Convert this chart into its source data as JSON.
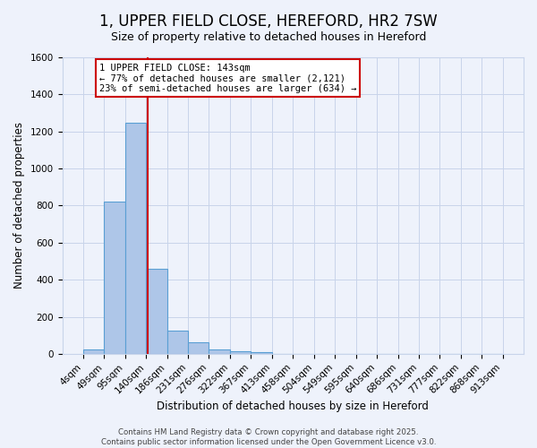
{
  "title": "1, UPPER FIELD CLOSE, HEREFORD, HR2 7SW",
  "subtitle": "Size of property relative to detached houses in Hereford",
  "xlabel": "Distribution of detached houses by size in Hereford",
  "ylabel": "Number of detached properties",
  "bar_values": [
    25,
    820,
    1245,
    460,
    125,
    60,
    25,
    15,
    10,
    0,
    0,
    0,
    0,
    0,
    0,
    0,
    0,
    0,
    0,
    0
  ],
  "bin_edges": [
    4,
    49,
    95,
    140,
    186,
    231,
    276,
    322,
    367,
    413,
    458,
    504,
    549,
    595,
    640,
    686,
    731,
    777,
    822,
    868,
    913
  ],
  "bin_labels": [
    "4sqm",
    "49sqm",
    "95sqm",
    "140sqm",
    "186sqm",
    "231sqm",
    "276sqm",
    "322sqm",
    "367sqm",
    "413sqm",
    "458sqm",
    "504sqm",
    "549sqm",
    "595sqm",
    "640sqm",
    "686sqm",
    "731sqm",
    "777sqm",
    "822sqm",
    "868sqm",
    "913sqm"
  ],
  "bar_color": "#aec6e8",
  "bar_edge_color": "#5a9fd4",
  "vline_x": 143,
  "vline_color": "#cc0000",
  "annotation_line1": "1 UPPER FIELD CLOSE: 143sqm",
  "annotation_line2": "← 77% of detached houses are smaller (2,121)",
  "annotation_line3": "23% of semi-detached houses are larger (634) →",
  "ylim": [
    0,
    1600
  ],
  "yticks": [
    0,
    200,
    400,
    600,
    800,
    1000,
    1200,
    1400,
    1600
  ],
  "background_color": "#eef2fb",
  "grid_color": "#c8d4ea",
  "footer_line1": "Contains HM Land Registry data © Crown copyright and database right 2025.",
  "footer_line2": "Contains public sector information licensed under the Open Government Licence v3.0.",
  "title_fontsize": 12,
  "xlabel_fontsize": 8.5,
  "ylabel_fontsize": 8.5,
  "tick_fontsize": 7.5,
  "footer_fontsize": 6.2
}
